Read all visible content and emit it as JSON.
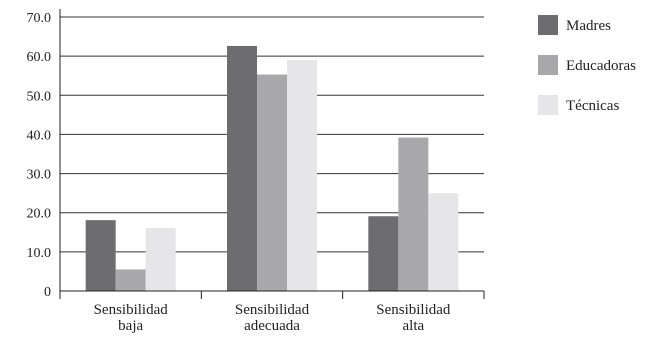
{
  "chart_data": {
    "type": "bar",
    "categories": [
      [
        "Sensibilidad",
        "baja"
      ],
      [
        "Sensibilidad",
        "adecuada"
      ],
      [
        "Sensibilidad",
        "alta"
      ]
    ],
    "series": [
      {
        "name": "Madres",
        "color": "#6d6d6f",
        "values": [
          18.1,
          62.6,
          19.1
        ]
      },
      {
        "name": "Educadoras",
        "color": "#a8a8aa",
        "values": [
          5.5,
          55.3,
          39.2
        ]
      },
      {
        "name": "Técnicas",
        "color": "#e6e6e8",
        "values": [
          16.1,
          59.0,
          25.0
        ]
      }
    ],
    "yticks": [
      "0",
      "10.0",
      "20.0",
      "30.0",
      "40.0",
      "50.0",
      "60.0",
      "70.0"
    ],
    "ylim": [
      0,
      70
    ],
    "grid": true,
    "legend_position": "right"
  }
}
